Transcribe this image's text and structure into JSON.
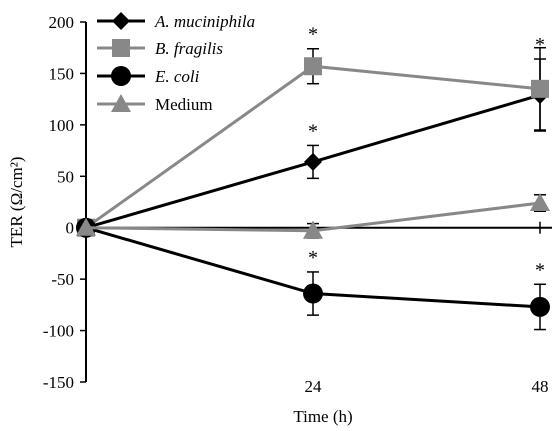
{
  "chart_data": {
    "type": "line",
    "xlabel": "Time (h)",
    "ylabel": "TER (Ω/cm²)",
    "ylim": [
      -150,
      200
    ],
    "yticks": [
      200,
      150,
      100,
      50,
      0,
      -50,
      -100,
      -150
    ],
    "ytick_labels": [
      "200",
      "150",
      "100",
      "50",
      "0",
      "-50",
      "-100",
      "-150"
    ],
    "xlim": [
      0,
      48
    ],
    "xticks": [
      24,
      48
    ],
    "xtick_labels": [
      "24",
      "48"
    ],
    "legend_position": "top-left",
    "grid": false,
    "series": [
      {
        "name": "A. muciniphila",
        "italic": true,
        "marker": "diamond",
        "color": "#000000",
        "x": [
          0,
          24,
          48
        ],
        "y": [
          0,
          64,
          129
        ],
        "err": [
          0,
          16,
          35
        ],
        "significance": [
          "",
          "*",
          "*"
        ]
      },
      {
        "name": "B. fragilis",
        "italic": true,
        "marker": "square",
        "color": "#888888",
        "x": [
          0,
          24,
          48
        ],
        "y": [
          0,
          157,
          135
        ],
        "err": [
          0,
          17,
          40
        ],
        "significance": [
          "",
          "*",
          ""
        ]
      },
      {
        "name": "E. coli",
        "italic": true,
        "marker": "circle",
        "color": "#000000",
        "x": [
          0,
          24,
          48
        ],
        "y": [
          0,
          -64,
          -77
        ],
        "err": [
          0,
          21,
          22
        ],
        "significance": [
          "",
          "*",
          "*"
        ]
      },
      {
        "name": "Medium",
        "italic": false,
        "marker": "triangle",
        "color": "#888888",
        "x": [
          0,
          24,
          48
        ],
        "y": [
          0,
          -3,
          24
        ],
        "err": [
          0,
          7,
          8
        ],
        "significance": [
          "",
          "",
          ""
        ]
      }
    ]
  }
}
